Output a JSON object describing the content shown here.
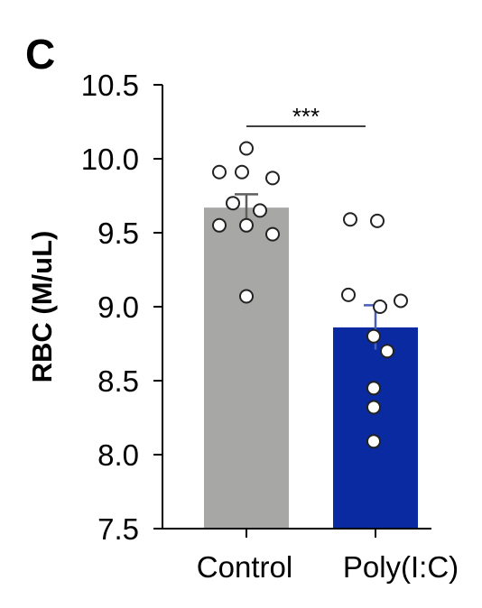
{
  "panel_label": "C",
  "chart_data": {
    "type": "bar",
    "categories": [
      "Control",
      "Poly(I:C)"
    ],
    "values": [
      9.67,
      8.86
    ],
    "error": [
      0.09,
      0.15
    ],
    "points": [
      [
        10.07,
        9.91,
        9.91,
        9.87,
        9.7,
        9.65,
        9.55,
        9.55,
        9.49,
        9.07
      ],
      [
        9.59,
        9.58,
        9.08,
        9.04,
        9.0,
        8.8,
        8.7,
        8.45,
        8.32,
        8.09
      ]
    ],
    "colors": [
      "#a7a8a6",
      "#0a2aa1"
    ],
    "ylabel": "RBC (M/uL)",
    "xlabel": "",
    "ylim": [
      7.5,
      10.5
    ],
    "yticks": [
      "7.5",
      "8.0",
      "8.5",
      "9.0",
      "9.5",
      "10.0",
      "10.5"
    ],
    "significance": "***"
  }
}
